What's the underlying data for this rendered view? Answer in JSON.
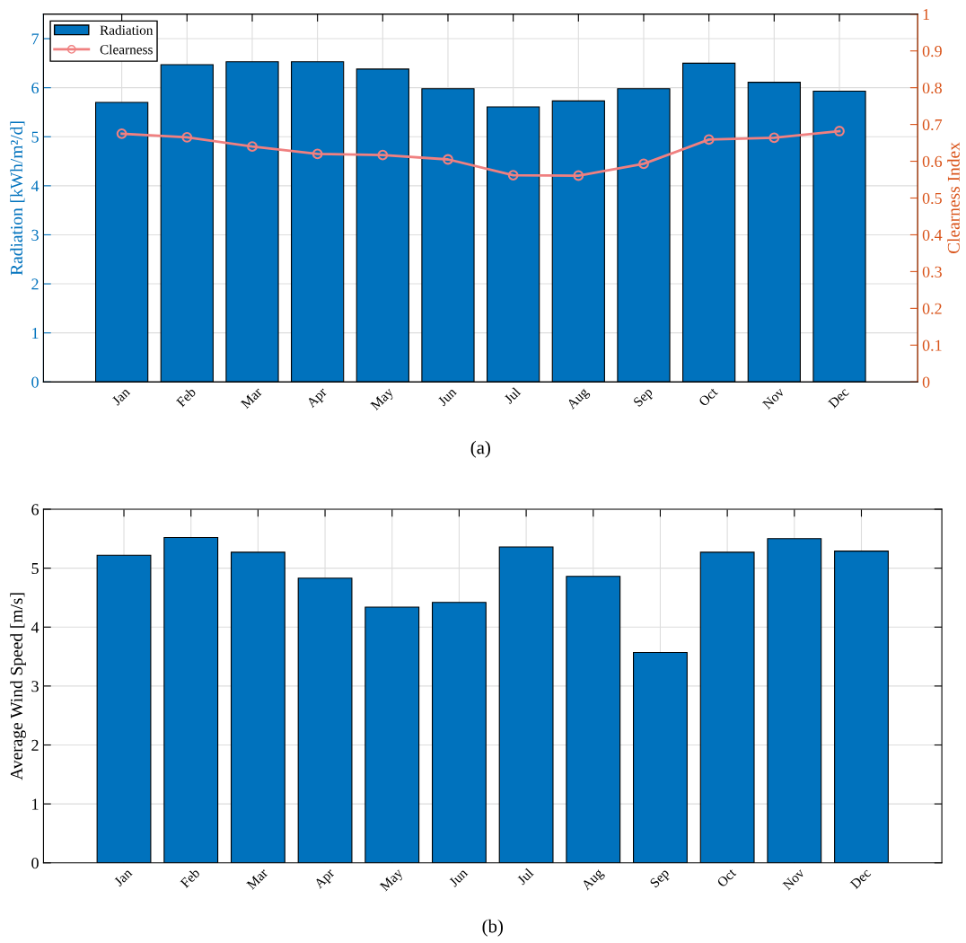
{
  "chart_data": [
    {
      "type": "bar",
      "categories": [
        "Jan",
        "Feb",
        "Mar",
        "Apr",
        "May",
        "Jun",
        "Jul",
        "Aug",
        "Sep",
        "Oct",
        "Nov",
        "Dec"
      ],
      "series": [
        {
          "name": "Radiation",
          "type": "bar",
          "color": "#0072bd",
          "values": [
            5.7,
            6.47,
            6.53,
            6.53,
            6.38,
            5.98,
            5.61,
            5.73,
            5.98,
            6.5,
            6.11,
            5.93
          ]
        },
        {
          "name": "Clearness",
          "type": "line",
          "axis": "y2",
          "color": "#f08080",
          "marker": "circle",
          "values": [
            0.675,
            0.665,
            0.64,
            0.62,
            0.617,
            0.605,
            0.562,
            0.561,
            0.593,
            0.659,
            0.664,
            0.682
          ]
        }
      ],
      "ylabel": "Radiation [kWh/m²/d]",
      "y2label": "Clearness Index",
      "ylim": [
        0,
        7.5
      ],
      "yticks": [
        0,
        1,
        2,
        3,
        4,
        5,
        6,
        7
      ],
      "y2lim": [
        0,
        1
      ],
      "y2ticks": [
        0,
        0.1,
        0.2,
        0.3,
        0.4,
        0.5,
        0.6,
        0.7,
        0.8,
        0.9,
        1
      ],
      "grid": true,
      "legend": "top left",
      "annotations": [
        "(a)"
      ]
    },
    {
      "type": "bar",
      "categories": [
        "Jan",
        "Feb",
        "Mar",
        "Apr",
        "May",
        "Jun",
        "Jul",
        "Aug",
        "Sep",
        "Oct",
        "Nov",
        "Dec"
      ],
      "series": [
        {
          "color": "#0072bd",
          "values": [
            5.22,
            5.52,
            5.27,
            4.83,
            4.34,
            4.42,
            5.36,
            4.86,
            3.57,
            5.27,
            5.5,
            5.29
          ]
        }
      ],
      "ylabel": "Average Wind Speed [m/s]",
      "ylim": [
        0,
        6
      ],
      "yticks": [
        0,
        1,
        2,
        3,
        4,
        5,
        6
      ],
      "grid": true,
      "annotations": [
        "(b)"
      ]
    }
  ]
}
